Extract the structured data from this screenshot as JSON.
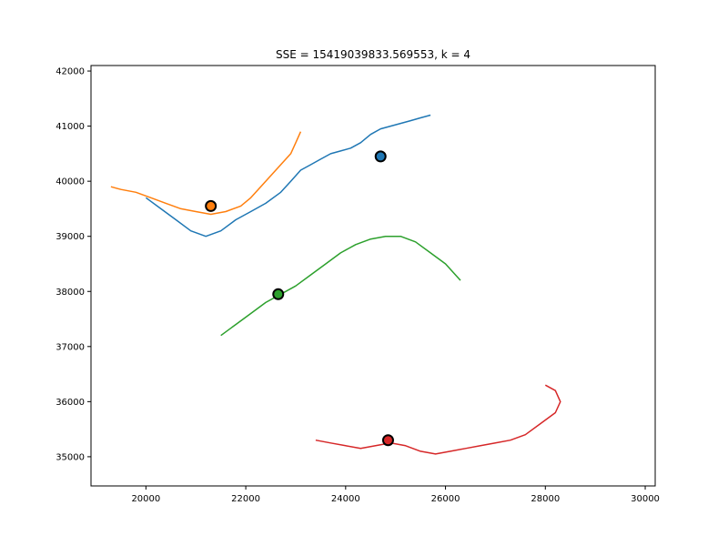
{
  "chart_data": {
    "type": "line",
    "title": "SSE = 15419039833.569553, k = 4",
    "xlabel": "",
    "ylabel": "",
    "xlim": [
      18900,
      30200
    ],
    "ylim": [
      34470,
      42100
    ],
    "x_ticks": [
      20000,
      22000,
      24000,
      26000,
      28000,
      30000
    ],
    "y_ticks": [
      35000,
      36000,
      37000,
      38000,
      39000,
      40000,
      41000,
      42000
    ],
    "grid": false,
    "legend": "none",
    "series": [
      {
        "color": "#1f77b4",
        "points": [
          [
            20000,
            39700
          ],
          [
            20300,
            39500
          ],
          [
            20600,
            39300
          ],
          [
            20900,
            39100
          ],
          [
            21200,
            39000
          ],
          [
            21500,
            39100
          ],
          [
            21800,
            39300
          ],
          [
            22100,
            39450
          ],
          [
            22400,
            39600
          ],
          [
            22700,
            39800
          ],
          [
            22900,
            40000
          ],
          [
            23100,
            40200
          ],
          [
            23300,
            40300
          ],
          [
            23500,
            40400
          ],
          [
            23700,
            40500
          ],
          [
            23900,
            40550
          ],
          [
            24100,
            40600
          ],
          [
            24300,
            40700
          ],
          [
            24500,
            40850
          ],
          [
            24700,
            40950
          ],
          [
            24900,
            41000
          ],
          [
            25100,
            41050
          ],
          [
            25300,
            41100
          ],
          [
            25500,
            41150
          ],
          [
            25700,
            41200
          ]
        ],
        "centroid": [
          24700,
          40450
        ]
      },
      {
        "color": "#ff7f0e",
        "points": [
          [
            19300,
            39900
          ],
          [
            19500,
            39850
          ],
          [
            19800,
            39800
          ],
          [
            20100,
            39700
          ],
          [
            20400,
            39600
          ],
          [
            20700,
            39500
          ],
          [
            21000,
            39450
          ],
          [
            21300,
            39400
          ],
          [
            21600,
            39450
          ],
          [
            21900,
            39550
          ],
          [
            22100,
            39700
          ],
          [
            22300,
            39900
          ],
          [
            22500,
            40100
          ],
          [
            22700,
            40300
          ],
          [
            22900,
            40500
          ],
          [
            23000,
            40700
          ],
          [
            23100,
            40900
          ]
        ],
        "centroid": [
          21300,
          39550
        ]
      },
      {
        "color": "#2ca02c",
        "points": [
          [
            21500,
            37200
          ],
          [
            21800,
            37400
          ],
          [
            22100,
            37600
          ],
          [
            22400,
            37800
          ],
          [
            22700,
            37950
          ],
          [
            23000,
            38100
          ],
          [
            23300,
            38300
          ],
          [
            23600,
            38500
          ],
          [
            23900,
            38700
          ],
          [
            24200,
            38850
          ],
          [
            24500,
            38950
          ],
          [
            24800,
            39000
          ],
          [
            25100,
            39000
          ],
          [
            25400,
            38900
          ],
          [
            25700,
            38700
          ],
          [
            26000,
            38500
          ],
          [
            26300,
            38200
          ]
        ],
        "centroid": [
          22650,
          37950
        ]
      },
      {
        "color": "#d62728",
        "points": [
          [
            23400,
            35300
          ],
          [
            23700,
            35250
          ],
          [
            24000,
            35200
          ],
          [
            24300,
            35150
          ],
          [
            24600,
            35200
          ],
          [
            24900,
            35250
          ],
          [
            25200,
            35200
          ],
          [
            25500,
            35100
          ],
          [
            25800,
            35050
          ],
          [
            26100,
            35100
          ],
          [
            26400,
            35150
          ],
          [
            26700,
            35200
          ],
          [
            27000,
            35250
          ],
          [
            27300,
            35300
          ],
          [
            27600,
            35400
          ],
          [
            27900,
            35600
          ],
          [
            28200,
            35800
          ],
          [
            28300,
            36000
          ],
          [
            28200,
            36200
          ],
          [
            28000,
            36300
          ]
        ],
        "centroid": [
          24850,
          35300
        ]
      }
    ]
  }
}
